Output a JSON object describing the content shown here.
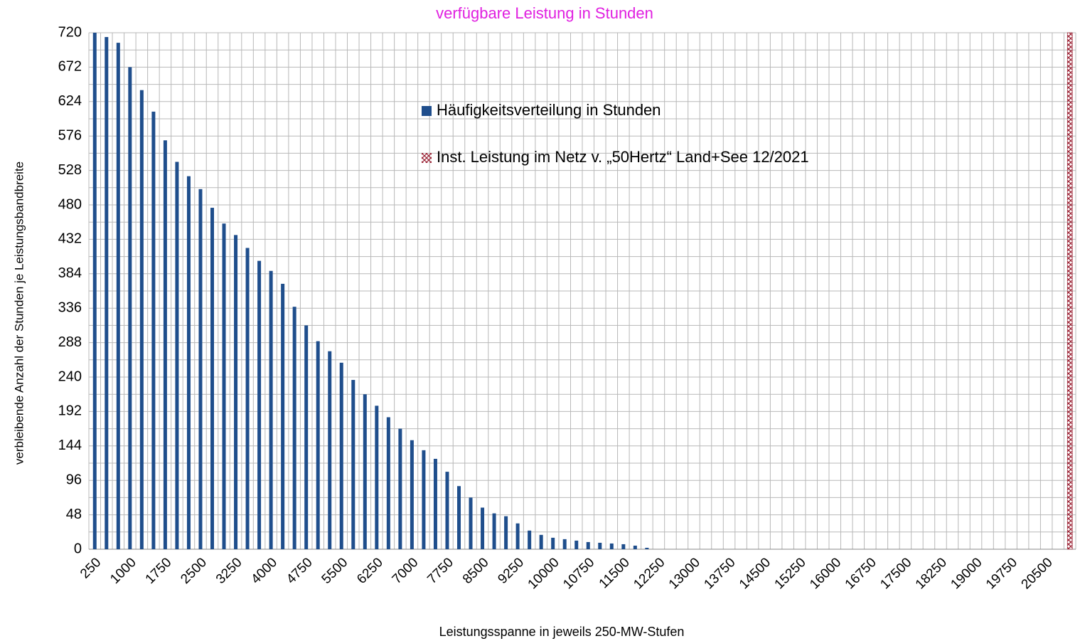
{
  "chart_data": {
    "type": "bar",
    "title": "verfügbare Leistung in Stunden",
    "x_label": "Leistungsspanne in jeweils 250-MW-Stufen",
    "y_label": "verbleibende Anzahl der Stunden je Leistungsbandbreite",
    "title_color": "#e020e0",
    "categories": [
      "250",
      null,
      null,
      "1000",
      null,
      null,
      "1750",
      null,
      null,
      "2500",
      null,
      null,
      "3250",
      null,
      null,
      "4000",
      null,
      null,
      "4750",
      null,
      null,
      "5500",
      null,
      null,
      "6250",
      null,
      null,
      "7000",
      null,
      null,
      "7750",
      null,
      null,
      "8500",
      null,
      null,
      "9250",
      null,
      null,
      "10000",
      null,
      null,
      "10750",
      null,
      null,
      "11500",
      null,
      null,
      "12250",
      null,
      null,
      "13000",
      null,
      null,
      "13750",
      null,
      null,
      "14500",
      null,
      null,
      "15250",
      null,
      null,
      "16000",
      null,
      null,
      "16750",
      null,
      null,
      "17500",
      null,
      null,
      "18250",
      null,
      null,
      "19000",
      null,
      null,
      "19750",
      null,
      null,
      "20500",
      null,
      null
    ],
    "series": [
      {
        "name": "Häufigkeitsverteilung in Stunden",
        "color": "#1f4e8c",
        "values": [
          720,
          714,
          706,
          672,
          640,
          610,
          570,
          540,
          520,
          502,
          476,
          454,
          438,
          420,
          402,
          388,
          370,
          338,
          312,
          290,
          276,
          260,
          236,
          216,
          200,
          184,
          168,
          152,
          138,
          126,
          108,
          88,
          72,
          58,
          50,
          46,
          36,
          26,
          20,
          16,
          14,
          12,
          10,
          9,
          8,
          7,
          5,
          2,
          null,
          null,
          null,
          null,
          null,
          null,
          null,
          null,
          null,
          null,
          null,
          null,
          null,
          null,
          null,
          null,
          null,
          null,
          null,
          null,
          null,
          null,
          null,
          null,
          null,
          null,
          null,
          null,
          null,
          null,
          null,
          null,
          null,
          null,
          null,
          null
        ]
      },
      {
        "name": "Inst. Leistung im Netz v. „50Hertz“  Land+See 12/2021",
        "color": "#9b2335",
        "values": [
          null,
          null,
          null,
          null,
          null,
          null,
          null,
          null,
          null,
          null,
          null,
          null,
          null,
          null,
          null,
          null,
          null,
          null,
          null,
          null,
          null,
          null,
          null,
          null,
          null,
          null,
          null,
          null,
          null,
          null,
          null,
          null,
          null,
          null,
          null,
          null,
          null,
          null,
          null,
          null,
          null,
          null,
          null,
          null,
          null,
          null,
          null,
          null,
          null,
          null,
          null,
          null,
          null,
          null,
          null,
          null,
          null,
          null,
          null,
          null,
          null,
          null,
          null,
          null,
          null,
          null,
          null,
          null,
          null,
          null,
          null,
          null,
          null,
          null,
          null,
          null,
          null,
          null,
          null,
          null,
          null,
          null,
          null,
          720
        ]
      }
    ],
    "ylim": [
      0,
      720
    ],
    "yticks": [
      0,
      48,
      96,
      144,
      192,
      240,
      288,
      336,
      384,
      432,
      480,
      528,
      576,
      624,
      672,
      720
    ],
    "grid": true,
    "legend": "upper center"
  }
}
